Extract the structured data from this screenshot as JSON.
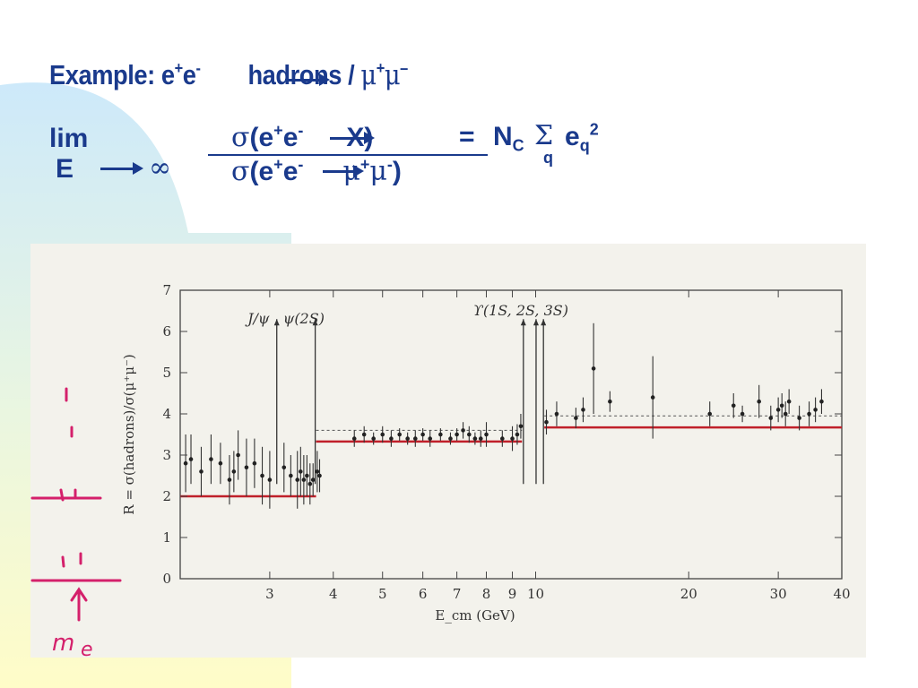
{
  "slide": {
    "title_prefix": "Example: e",
    "title_sup1": "+",
    "title_e2": "e",
    "title_sup2": "-",
    "title_hadrons": "hadrons / ",
    "title_mu": "μ",
    "title_mu_sup1": "+",
    "title_mu2": "μ",
    "title_mu_sup2": "–",
    "lim_label": "lim",
    "lim_var": "E",
    "lim_to": "∞",
    "num_sigma": "σ",
    "num_open": "(e",
    "num_sup1": "+",
    "num_e": "e",
    "num_sup2": "-",
    "num_X": "X)",
    "den_sigma": "σ",
    "den_open": "(e",
    "den_sup1": "+",
    "den_e": "e",
    "den_sup2": "-",
    "den_mu": "μ",
    "den_mu_sup1": "+",
    "den_mu2": "μ",
    "den_mu_sup2": "-",
    "den_close": ")",
    "equals": "=",
    "nc": "N",
    "nc_sub": "C",
    "sum": "Σ",
    "sum_sub": "q",
    "eq_e": "e",
    "eq_sub": "q",
    "eq_sup": "2",
    "handwriting": "m"
  },
  "chart_data": {
    "type": "scatter",
    "title": "",
    "xlabel": "E_cm (GeV)",
    "ylabel": "R = σ(hadrons)/σ(μ⁺μ⁻)",
    "xscale": "log",
    "xlim": [
      2.0,
      40.0
    ],
    "ylim": [
      0,
      7
    ],
    "x_ticks": [
      3,
      4,
      5,
      6,
      7,
      8,
      9,
      10,
      20,
      30,
      40
    ],
    "x_tick_labels": [
      "3",
      "4",
      "5",
      "6",
      "7",
      "8",
      "9",
      "10",
      "20",
      "30",
      "40"
    ],
    "y_ticks": [
      0,
      1,
      2,
      3,
      4,
      5,
      6,
      7
    ],
    "y_tick_labels": [
      "0",
      "1",
      "2",
      "3",
      "4",
      "5",
      "6",
      "7"
    ],
    "annotations": [
      {
        "text": "J/ψ",
        "x": 2.85,
        "y": 6.3
      },
      {
        "text": "ψ(2S)",
        "x": 3.5,
        "y": 6.3
      },
      {
        "text": "ϒ(1S, 2S, 3S)",
        "x": 9.35,
        "y": 6.5
      }
    ],
    "resonances": [
      {
        "x": 3.097,
        "y_top": 6.3
      },
      {
        "x": 3.686,
        "y_top": 6.3
      },
      {
        "x": 9.46,
        "y_top": 6.3
      },
      {
        "x": 10.02,
        "y_top": 6.3
      },
      {
        "x": 10.36,
        "y_top": 6.3
      }
    ],
    "prediction_lines": [
      {
        "x": [
          2.0,
          3.7
        ],
        "y": 2.0
      },
      {
        "x": [
          3.7,
          9.4
        ],
        "y": 3.33
      },
      {
        "x": [
          10.4,
          40.0
        ],
        "y": 3.67
      }
    ],
    "qcd_lines": [
      {
        "x": [
          3.7,
          9.4
        ],
        "y": 3.6
      },
      {
        "x": [
          10.4,
          40.0
        ],
        "y": 3.95
      }
    ],
    "series": [
      {
        "x": [
          2.05,
          2.1,
          2.2,
          2.3,
          2.4,
          2.5,
          2.55,
          2.6,
          2.7,
          2.8,
          2.9,
          3.0,
          3.2,
          3.3,
          3.4,
          3.45,
          3.5,
          3.55,
          3.6,
          3.65,
          3.72,
          3.76,
          4.4,
          4.6,
          4.8,
          5.0,
          5.2,
          5.4,
          5.6,
          5.8,
          6.0,
          6.2,
          6.5,
          6.8,
          7.0,
          7.2,
          7.4,
          7.6,
          7.8,
          8.0,
          8.6,
          9.0,
          9.2,
          9.35,
          10.5,
          11.0,
          12.0,
          12.4,
          13.0,
          14.0,
          17.0,
          22.0,
          24.5,
          25.5,
          27.5,
          29.0,
          30.0,
          30.5,
          31.0,
          31.5,
          33.0,
          34.5,
          35.5,
          36.5
        ],
        "y": [
          2.8,
          2.9,
          2.6,
          2.9,
          2.8,
          2.4,
          2.6,
          3.0,
          2.7,
          2.8,
          2.5,
          2.4,
          2.7,
          2.5,
          2.4,
          2.6,
          2.4,
          2.5,
          2.3,
          2.4,
          2.6,
          2.5,
          3.4,
          3.5,
          3.4,
          3.5,
          3.4,
          3.5,
          3.4,
          3.4,
          3.5,
          3.4,
          3.5,
          3.4,
          3.5,
          3.6,
          3.5,
          3.4,
          3.4,
          3.5,
          3.4,
          3.4,
          3.5,
          3.7,
          3.8,
          4.0,
          3.9,
          4.1,
          5.1,
          4.3,
          4.4,
          4.0,
          4.2,
          4.0,
          4.3,
          3.9,
          4.1,
          4.2,
          4.0,
          4.3,
          3.9,
          4.0,
          4.1,
          4.3
        ],
        "err": [
          0.7,
          0.6,
          0.6,
          0.6,
          0.5,
          0.6,
          0.5,
          0.6,
          0.7,
          0.6,
          0.7,
          0.7,
          0.6,
          0.5,
          0.7,
          0.6,
          0.6,
          0.5,
          0.5,
          0.4,
          0.5,
          0.4,
          0.2,
          0.2,
          0.15,
          0.2,
          0.2,
          0.15,
          0.15,
          0.2,
          0.15,
          0.2,
          0.15,
          0.15,
          0.15,
          0.2,
          0.2,
          0.15,
          0.2,
          0.3,
          0.2,
          0.3,
          0.25,
          0.3,
          0.3,
          0.3,
          0.25,
          0.3,
          1.1,
          0.25,
          1.0,
          0.3,
          0.3,
          0.2,
          0.4,
          0.3,
          0.3,
          0.3,
          0.3,
          0.3,
          0.3,
          0.3,
          0.3,
          0.3
        ]
      }
    ],
    "grid": false
  }
}
